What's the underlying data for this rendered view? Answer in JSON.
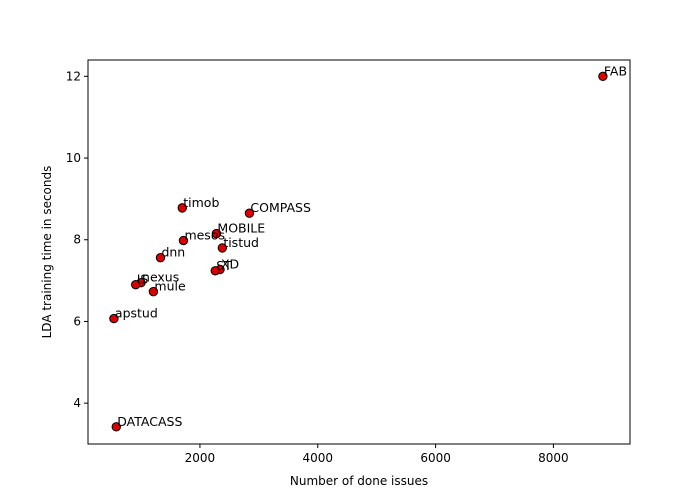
{
  "chart_data": {
    "type": "scatter",
    "title": "",
    "xlabel": "Number of done issues",
    "ylabel": "LDA training time in seconds",
    "xlim": [
      100,
      9300
    ],
    "ylim": [
      3.0,
      12.4
    ],
    "xticks": [
      2000,
      4000,
      6000,
      8000
    ],
    "yticks": [
      4,
      6,
      8,
      10,
      12
    ],
    "grid": false,
    "marker_color": "#dd0000",
    "marker_edge": "#000000",
    "points": [
      {
        "label": "FAB",
        "x": 8840,
        "y": 12.0
      },
      {
        "label": "COMPASS",
        "x": 2840,
        "y": 8.65
      },
      {
        "label": "timob",
        "x": 1700,
        "y": 8.78
      },
      {
        "label": "MOBILE",
        "x": 2280,
        "y": 8.15
      },
      {
        "label": "mesos",
        "x": 1720,
        "y": 7.98
      },
      {
        "label": "tistud",
        "x": 2380,
        "y": 7.8
      },
      {
        "label": "dnn",
        "x": 1330,
        "y": 7.56
      },
      {
        "label": "XD",
        "x": 2340,
        "y": 7.27
      },
      {
        "label": "ST",
        "x": 2260,
        "y": 7.24
      },
      {
        "label": "nexus",
        "x": 1000,
        "y": 6.95
      },
      {
        "label": "IS",
        "x": 910,
        "y": 6.9
      },
      {
        "label": "mule",
        "x": 1210,
        "y": 6.73
      },
      {
        "label": "apstud",
        "x": 540,
        "y": 6.07
      },
      {
        "label": "DATACASS",
        "x": 580,
        "y": 3.42
      }
    ]
  }
}
